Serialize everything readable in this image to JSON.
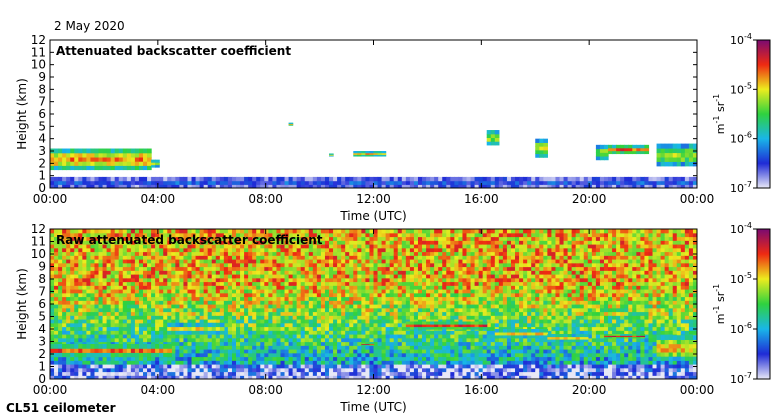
{
  "date": "2 May 2020",
  "instrument": "CL51 ceilometer",
  "colormap": [
    "#e8e8f6",
    "#1f2bd6",
    "#19b6e8",
    "#2fd23f",
    "#ecec1e",
    "#ee2a12",
    "#7a0a72"
  ],
  "chart_data": [
    {
      "type": "heatmap",
      "title": "Attenuated backscatter coefficient",
      "xlabel": "Time (UTC)",
      "ylabel": "Height (km)",
      "xticks": [
        "00:00",
        "04:00",
        "08:00",
        "12:00",
        "16:00",
        "20:00",
        "00:00"
      ],
      "xlim_hours": [
        0,
        24
      ],
      "ylim": [
        0,
        12
      ],
      "yticks": [
        0,
        1,
        2,
        3,
        4,
        5,
        6,
        7,
        8,
        9,
        10,
        11,
        12
      ],
      "colorbar": {
        "label": "m-1 sr-1",
        "scale": "log",
        "range": [
          1e-07,
          0.0001
        ],
        "ticks": [
          {
            "base": "10",
            "exp": "-4",
            "value": 0.0001
          },
          {
            "base": "10",
            "exp": "-5",
            "value": 1e-05
          },
          {
            "base": "10",
            "exp": "-6",
            "value": 1e-06
          },
          {
            "base": "10",
            "exp": "-7",
            "value": 1e-07
          }
        ]
      },
      "features": [
        {
          "name": "boundary layer",
          "t_start": 0,
          "t_end": 24,
          "h_bottom": 0,
          "h_top": 0.9,
          "level": 0.2
        },
        {
          "name": "cloud layer",
          "t_start": 0,
          "t_end": 3.7,
          "h_bottom": 1.5,
          "h_top": 3.2,
          "level": 0.75
        },
        {
          "name": "cloud",
          "t_start": 3.8,
          "t_end": 4.0,
          "h_bottom": 1.7,
          "h_top": 2.3,
          "level": 0.6
        },
        {
          "name": "cloud",
          "t_start": 8.9,
          "t_end": 9.0,
          "h_bottom": 5.1,
          "h_top": 5.3,
          "level": 0.7
        },
        {
          "name": "cloud",
          "t_start": 10.4,
          "t_end": 10.5,
          "h_bottom": 2.6,
          "h_top": 2.8,
          "level": 0.6
        },
        {
          "name": "cloud",
          "t_start": 11.3,
          "t_end": 12.5,
          "h_bottom": 2.6,
          "h_top": 3.0,
          "level": 0.7
        },
        {
          "name": "cloud",
          "t_start": 16.2,
          "t_end": 16.6,
          "h_bottom": 3.5,
          "h_top": 4.7,
          "level": 0.6
        },
        {
          "name": "cloud",
          "t_start": 18.0,
          "t_end": 18.5,
          "h_bottom": 2.5,
          "h_top": 4.0,
          "level": 0.6
        },
        {
          "name": "cloud",
          "t_start": 20.3,
          "t_end": 20.7,
          "h_bottom": 2.3,
          "h_top": 3.5,
          "level": 0.6
        },
        {
          "name": "cloud",
          "t_start": 20.7,
          "t_end": 22.2,
          "h_bottom": 2.8,
          "h_top": 3.5,
          "level": 0.8
        },
        {
          "name": "cloud",
          "t_start": 22.5,
          "t_end": 24.0,
          "h_bottom": 1.8,
          "h_top": 3.6,
          "level": 0.6
        }
      ]
    },
    {
      "type": "heatmap",
      "title": "Raw attenuated backscatter coefficient",
      "xlabel": "Time (UTC)",
      "ylabel": "Height (km)",
      "xticks": [
        "00:00",
        "04:00",
        "08:00",
        "12:00",
        "16:00",
        "20:00",
        "00:00"
      ],
      "xlim_hours": [
        0,
        24
      ],
      "ylim": [
        0,
        12
      ],
      "yticks": [
        0,
        1,
        2,
        3,
        4,
        5,
        6,
        7,
        8,
        9,
        10,
        11,
        12
      ],
      "colorbar": {
        "label": "m-1 sr-1",
        "scale": "log",
        "range": [
          1e-07,
          0.0001
        ],
        "ticks": [
          {
            "base": "10",
            "exp": "-4",
            "value": 0.0001
          },
          {
            "base": "10",
            "exp": "-5",
            "value": 1e-05
          },
          {
            "base": "10",
            "exp": "-6",
            "value": 1e-06
          },
          {
            "base": "10",
            "exp": "-7",
            "value": 1e-07
          }
        ]
      },
      "features": [
        {
          "name": "background noise",
          "t_start": 0,
          "t_end": 24,
          "h_bottom": 0,
          "h_top": 12,
          "level": 0.45
        },
        {
          "name": "cloud layer",
          "t_start": 0,
          "t_end": 4.5,
          "h_bottom": 1.8,
          "h_top": 2.8,
          "level": 0.8
        },
        {
          "name": "aerosol layer",
          "t_start": 4.3,
          "t_end": 6.5,
          "h_bottom": 3.6,
          "h_top": 4.5,
          "level": 0.65
        },
        {
          "name": "cloud",
          "t_start": 11.5,
          "t_end": 12.0,
          "h_bottom": 2.7,
          "h_top": 2.9,
          "level": 0.85
        },
        {
          "name": "aerosol layer",
          "t_start": 13.2,
          "t_end": 16.2,
          "h_bottom": 4.0,
          "h_top": 4.6,
          "level": 0.85
        },
        {
          "name": "cloud",
          "t_start": 16.5,
          "t_end": 18.5,
          "h_bottom": 3.3,
          "h_top": 4.0,
          "level": 0.7
        },
        {
          "name": "cloud",
          "t_start": 18.5,
          "t_end": 20.0,
          "h_bottom": 3.0,
          "h_top": 3.6,
          "level": 0.7
        },
        {
          "name": "cloud",
          "t_start": 20.5,
          "t_end": 22.0,
          "h_bottom": 3.3,
          "h_top": 3.6,
          "level": 0.85
        },
        {
          "name": "cloud",
          "t_start": 22.5,
          "t_end": 24.0,
          "h_bottom": 1.5,
          "h_top": 3.5,
          "level": 0.7
        }
      ]
    }
  ]
}
